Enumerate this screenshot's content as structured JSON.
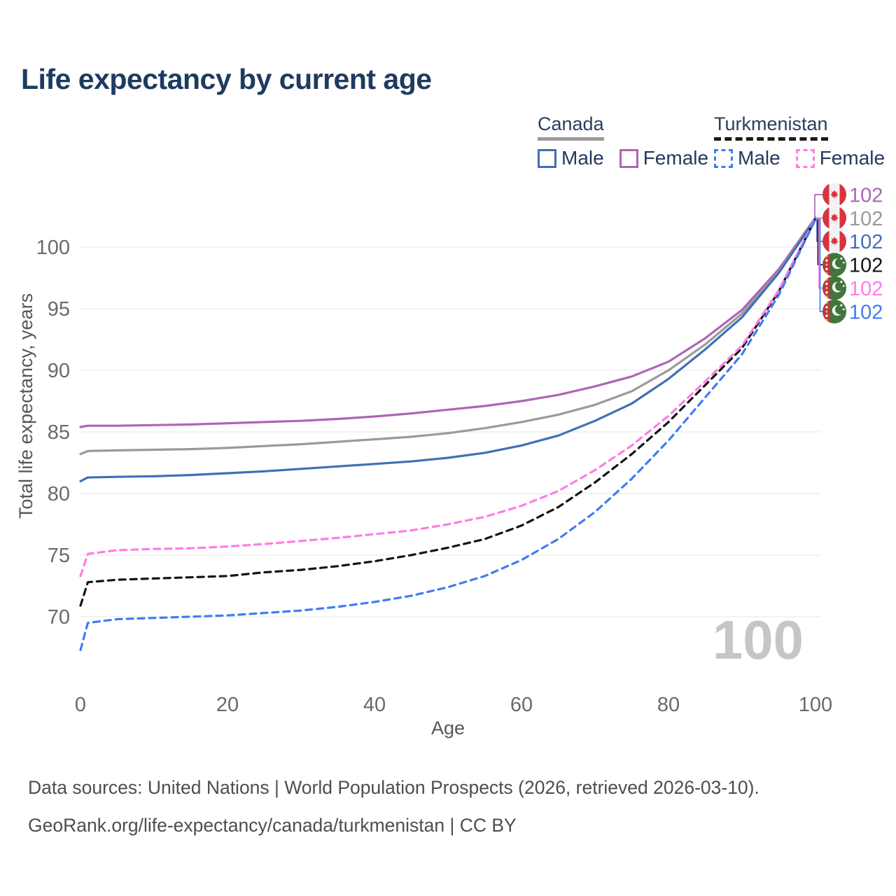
{
  "header": {
    "title": "Life expectancy by current age"
  },
  "legend": {
    "groups": [
      {
        "country": "Canada",
        "line_style": "solid",
        "underline_color": "#9a9a9a",
        "items": [
          {
            "label": "Male",
            "color": "#4070b4"
          },
          {
            "label": "Female",
            "color": "#ae65b5"
          }
        ]
      },
      {
        "country": "Turkmenistan",
        "line_style": "dashed",
        "underline_color": "#1a1a1a",
        "items": [
          {
            "label": "Male",
            "color": "#3f7df2"
          },
          {
            "label": "Female",
            "color": "#ff7ce6"
          }
        ]
      }
    ]
  },
  "chart_data": {
    "type": "line",
    "title": "Life expectancy by current age",
    "xlabel": "Age",
    "ylabel": "Total life expectancy, years",
    "xlim": [
      0,
      100
    ],
    "ylim": [
      66.5,
      103
    ],
    "x_ticks": [
      "0",
      "20",
      "40",
      "60",
      "80",
      "100"
    ],
    "y_ticks": [
      "70",
      "75",
      "80",
      "85",
      "90",
      "95",
      "100"
    ],
    "grid": "horizontal",
    "legend_position": "top-right",
    "x": [
      0,
      1,
      5,
      10,
      15,
      20,
      25,
      30,
      35,
      40,
      45,
      50,
      55,
      60,
      65,
      70,
      75,
      80,
      85,
      90,
      95,
      100
    ],
    "series": [
      {
        "name": "Canada Female",
        "country": "canada",
        "sex": "female",
        "color": "#ae65b5",
        "dash": false,
        "label_row": 0,
        "end_label": "102",
        "values": [
          85.4,
          85.5,
          85.5,
          85.55,
          85.6,
          85.7,
          85.8,
          85.9,
          86.05,
          86.25,
          86.5,
          86.8,
          87.1,
          87.5,
          88.0,
          88.7,
          89.5,
          90.7,
          92.6,
          94.9,
          98.2,
          102.4
        ]
      },
      {
        "name": "Canada Both sexes",
        "country": "canada",
        "sex": "both",
        "color": "#9a9a9a",
        "dash": false,
        "label_row": 1,
        "end_label": "102",
        "values": [
          83.2,
          83.45,
          83.5,
          83.55,
          83.6,
          83.7,
          83.85,
          84.0,
          84.2,
          84.4,
          84.6,
          84.9,
          85.3,
          85.8,
          86.4,
          87.2,
          88.3,
          90.0,
          92.1,
          94.6,
          98.0,
          102.35
        ]
      },
      {
        "name": "Canada Male",
        "country": "canada",
        "sex": "male",
        "color": "#4070b4",
        "dash": false,
        "label_row": 2,
        "end_label": "102",
        "values": [
          81.0,
          81.3,
          81.35,
          81.4,
          81.5,
          81.65,
          81.8,
          82.0,
          82.2,
          82.4,
          82.6,
          82.9,
          83.3,
          83.9,
          84.7,
          85.9,
          87.3,
          89.3,
          91.7,
          94.3,
          97.9,
          102.3
        ]
      },
      {
        "name": "Turkmenistan Both sexes",
        "country": "turkmenistan",
        "sex": "both",
        "color": "#141414",
        "dash": true,
        "label_row": 3,
        "end_label": "102",
        "values": [
          70.9,
          72.8,
          73.0,
          73.1,
          73.2,
          73.3,
          73.6,
          73.8,
          74.1,
          74.5,
          75.0,
          75.6,
          76.3,
          77.4,
          78.9,
          80.9,
          83.2,
          85.8,
          88.8,
          91.8,
          96.4,
          102.3
        ]
      },
      {
        "name": "Turkmenistan Female",
        "country": "turkmenistan",
        "sex": "female",
        "color": "#ff7ce6",
        "dash": true,
        "label_row": 4,
        "end_label": "102",
        "values": [
          73.3,
          75.1,
          75.4,
          75.5,
          75.55,
          75.7,
          75.9,
          76.15,
          76.4,
          76.7,
          77.0,
          77.5,
          78.1,
          79.0,
          80.2,
          81.9,
          83.9,
          86.3,
          89.1,
          92.0,
          96.5,
          102.35
        ]
      },
      {
        "name": "Turkmenistan Male",
        "country": "turkmenistan",
        "sex": "male",
        "color": "#3f7df2",
        "dash": true,
        "label_row": 5,
        "end_label": "102",
        "values": [
          67.3,
          69.5,
          69.8,
          69.9,
          70.0,
          70.1,
          70.3,
          70.5,
          70.8,
          71.2,
          71.7,
          72.4,
          73.3,
          74.6,
          76.3,
          78.5,
          81.2,
          84.3,
          87.8,
          91.3,
          96.1,
          102.25
        ]
      }
    ],
    "watermark": "100"
  },
  "footer": {
    "line1": "Data sources: United Nations | World Population Prospects (2026, retrieved 2026-03-10).",
    "line2": "GeoRank.org/life-expectancy/canada/turkmenistan | CC BY"
  }
}
